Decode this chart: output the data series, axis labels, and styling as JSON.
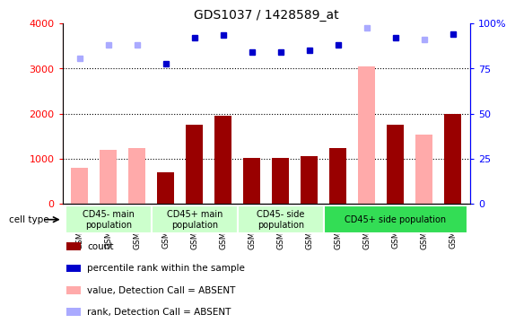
{
  "title": "GDS1037 / 1428589_at",
  "samples": [
    "GSM37461",
    "GSM37462",
    "GSM37463",
    "GSM37464",
    "GSM37465",
    "GSM37466",
    "GSM37467",
    "GSM37468",
    "GSM37469",
    "GSM37470",
    "GSM37471",
    "GSM37472",
    "GSM37473",
    "GSM37474"
  ],
  "count_values": [
    null,
    null,
    null,
    700,
    1750,
    1950,
    1020,
    1010,
    1060,
    1230,
    null,
    1760,
    null,
    2000
  ],
  "absent_value": [
    800,
    1190,
    1240,
    null,
    null,
    null,
    null,
    null,
    null,
    null,
    3050,
    null,
    1530,
    null
  ],
  "rank_present": [
    null,
    null,
    null,
    77.5,
    92.0,
    93.8,
    84.0,
    84.3,
    85.0,
    88.3,
    null,
    92.0,
    null,
    94.0
  ],
  "rank_absent": [
    80.5,
    88.3,
    88.3,
    null,
    null,
    null,
    null,
    null,
    null,
    null,
    97.5,
    null,
    91.0,
    null
  ],
  "ylim_left": [
    0,
    4000
  ],
  "ylim_right": [
    0,
    100
  ],
  "yticks_left": [
    0,
    1000,
    2000,
    3000,
    4000
  ],
  "yticks_right": [
    0,
    25,
    50,
    75,
    100
  ],
  "ytick_labels_right": [
    "0",
    "25",
    "50",
    "75",
    "100%"
  ],
  "grid_values": [
    1000,
    2000,
    3000
  ],
  "bar_color_present": "#990000",
  "bar_color_absent": "#ffaaaa",
  "marker_color_present": "#0000cc",
  "marker_color_absent": "#aaaaff",
  "cell_groups": [
    {
      "label": "CD45- main\npopulation",
      "start": 0,
      "end": 3,
      "color": "#ccffcc"
    },
    {
      "label": "CD45+ main\npopulation",
      "start": 3,
      "end": 6,
      "color": "#ccffcc"
    },
    {
      "label": "CD45- side\npopulation",
      "start": 6,
      "end": 9,
      "color": "#ccffcc"
    },
    {
      "label": "CD45+ side population",
      "start": 9,
      "end": 14,
      "color": "#33dd55"
    }
  ],
  "legend_items": [
    {
      "label": "count",
      "color": "#990000"
    },
    {
      "label": "percentile rank within the sample",
      "color": "#0000cc"
    },
    {
      "label": "value, Detection Call = ABSENT",
      "color": "#ffaaaa"
    },
    {
      "label": "rank, Detection Call = ABSENT",
      "color": "#aaaaff"
    }
  ],
  "cell_type_label": "cell type",
  "background_color": "#ffffff"
}
